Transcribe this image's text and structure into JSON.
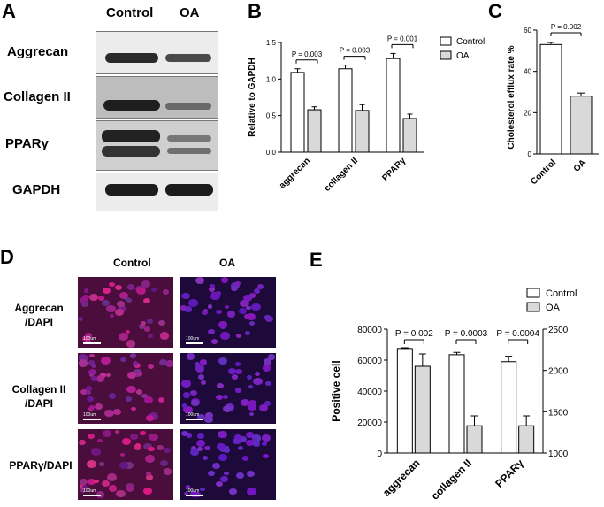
{
  "panelA": {
    "letter": "A",
    "headers": [
      "Control",
      "OA"
    ],
    "rows": [
      {
        "label": "Aggrecan",
        "ctrl": 0.95,
        "oa": 0.7
      },
      {
        "label": "Collagen II",
        "ctrl": 0.9,
        "oa": 0.55
      },
      {
        "label": "PPARγ",
        "ctrl": 1.0,
        "oa": 0.5
      },
      {
        "label": "GAPDH",
        "ctrl": 0.95,
        "oa": 0.95
      }
    ]
  },
  "panelB": {
    "letter": "B",
    "chart_data": {
      "type": "bar",
      "categories": [
        "aggrecan",
        "collagen II",
        "PPARγ"
      ],
      "series": [
        {
          "name": "Control",
          "values": [
            1.09,
            1.14,
            1.28
          ],
          "errors": [
            0.05,
            0.05,
            0.07
          ]
        },
        {
          "name": "OA",
          "values": [
            0.58,
            0.57,
            0.46
          ],
          "errors": [
            0.04,
            0.08,
            0.06
          ]
        }
      ],
      "pvalues": [
        "P = 0.003",
        "P = 0.003",
        "P = 0.001"
      ],
      "ylabel": "Relative to GAPDH",
      "ylim": [
        0,
        1.5
      ],
      "yticks": [
        "0.0",
        "0.5",
        "1.0",
        "1.5"
      ],
      "legend": "top-right"
    }
  },
  "panelC": {
    "letter": "C",
    "chart_data": {
      "type": "bar",
      "categories": [
        "Control",
        "OA"
      ],
      "values": [
        53,
        28
      ],
      "errors": [
        1,
        1.5
      ],
      "pvalue": "P = 0.002",
      "ylabel": "Cholesterol efflux rate %",
      "ylim": [
        0,
        60
      ],
      "yticks": [
        "0",
        "20",
        "40",
        "60"
      ]
    }
  },
  "panelD": {
    "letter": "D",
    "headers": [
      "Control",
      "OA"
    ],
    "rows": [
      {
        "label1": "Aggrecan",
        "label2": "/DAPI",
        "ctrl_level": 0.85,
        "oa_level": 0.35
      },
      {
        "label1": "Collagen II",
        "label2": "/DAPI",
        "ctrl_level": 0.75,
        "oa_level": 0.3
      },
      {
        "label1": "PPARγ/DAPI",
        "label2": "",
        "ctrl_level": 0.9,
        "oa_level": 0.25
      }
    ],
    "scale": "100um"
  },
  "panelE": {
    "letter": "E",
    "chart_data": {
      "type": "bar",
      "categories": [
        "aggrecan",
        "collagen II",
        "PPARγ"
      ],
      "series": [
        {
          "name": "Control",
          "axis": "left",
          "values": [
            67500,
            63500,
            59000
          ],
          "errors": [
            500,
            1500,
            3500
          ]
        },
        {
          "name": "OA",
          "axis": "right",
          "values": [
            2050,
            1330,
            1330
          ],
          "errors": [
            150,
            120,
            120
          ]
        }
      ],
      "pvalues": [
        "P = 0.002",
        "P = 0.0003",
        "P = 0.0004"
      ],
      "ylabel": "Positive cell",
      "ylim_left": [
        0,
        80000
      ],
      "ylim_right": [
        1000,
        2500
      ],
      "yticks_left": [
        "0",
        "20000",
        "40000",
        "60000",
        "80000"
      ],
      "yticks_right": [
        "1000",
        "1500",
        "2000",
        "2500"
      ],
      "legend": "top-right"
    }
  }
}
